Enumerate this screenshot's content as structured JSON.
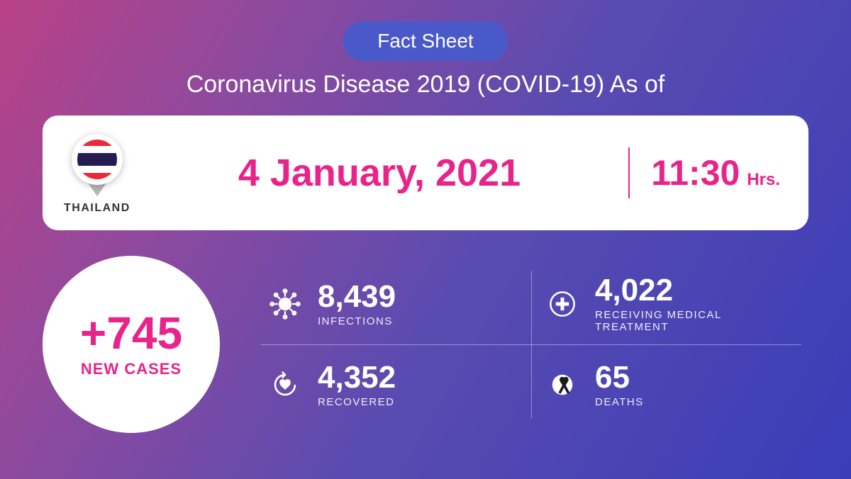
{
  "badge_label": "Fact Sheet",
  "subtitle": "Coronavirus Disease 2019 (COVID-19) As of",
  "country_label": "THAILAND",
  "flag_stripes": [
    "#ed2939",
    "#ffffff",
    "#241d4f",
    "#241d4f",
    "#ffffff",
    "#ed2939"
  ],
  "date": "4 January, 2021",
  "time": "11:30",
  "time_unit": "Hrs.",
  "new_cases": {
    "value": "+745",
    "label": "NEW CASES"
  },
  "stats": {
    "infections": {
      "value": "8,439",
      "label": "INFECTIONS"
    },
    "treatment": {
      "value": "4,022",
      "label": "RECEIVING MEDICAL TREATMENT"
    },
    "recovered": {
      "value": "4,352",
      "label": "RECOVERED"
    },
    "deaths": {
      "value": "65",
      "label": "DEATHS"
    }
  },
  "colors": {
    "accent_pink": "#e8248b",
    "badge_bg": "#4a59c9",
    "white": "#ffffff",
    "bg_gradient_start": "#b94186",
    "bg_gradient_end": "#3a3db8",
    "divider": "rgba(255,255,255,.4)"
  },
  "typography": {
    "badge_fontsize": 28,
    "subtitle_fontsize": 34,
    "date_fontsize": 54,
    "time_fontsize": 50,
    "newcases_num_fontsize": 64,
    "stat_num_fontsize": 44,
    "stat_label_fontsize": 15
  }
}
